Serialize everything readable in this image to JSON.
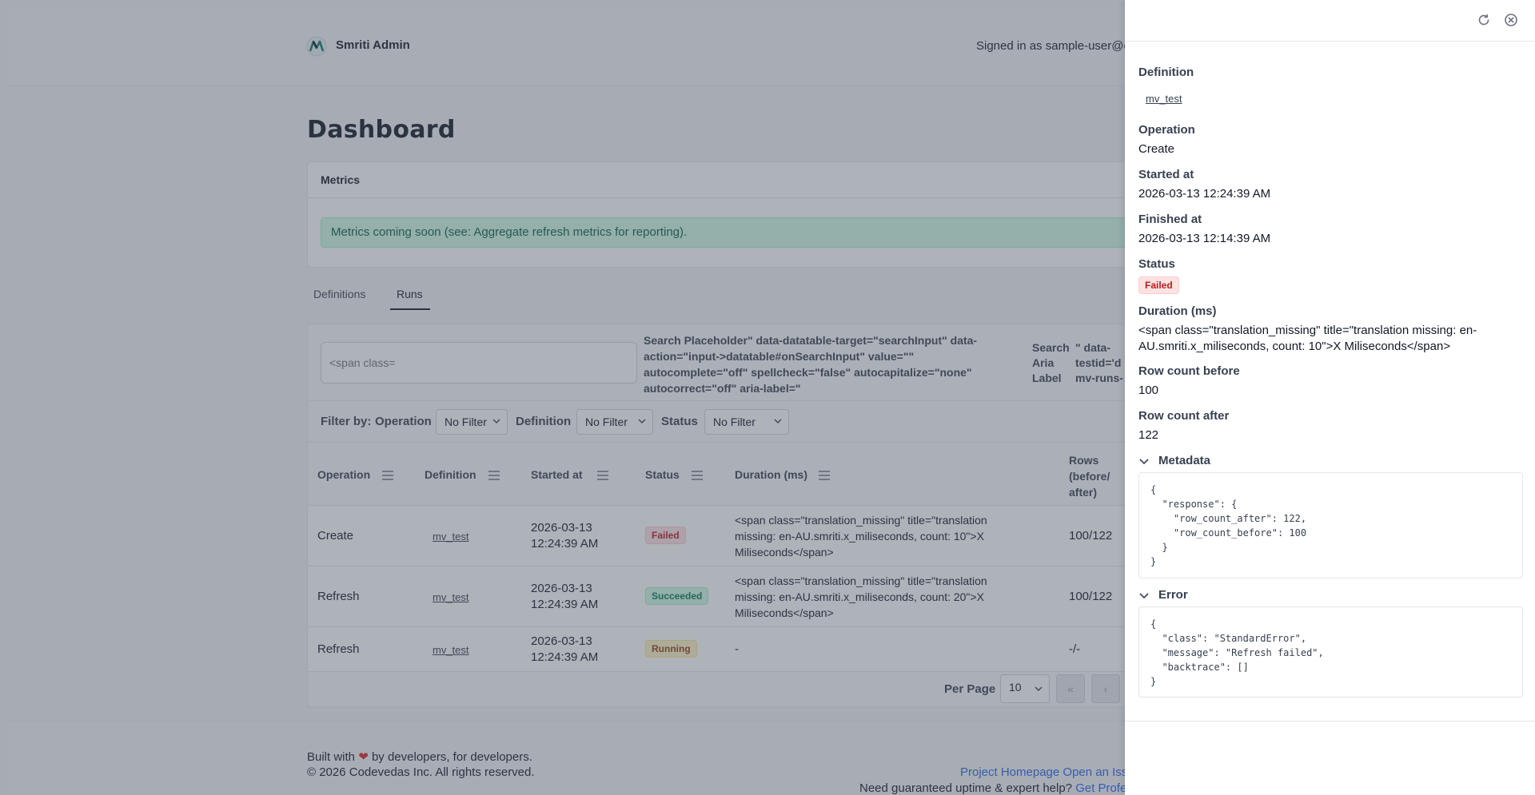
{
  "header": {
    "brand": "Smriti Admin",
    "signed_in": "Signed in as sample-user@e"
  },
  "page_title": "Dashboard",
  "metrics": {
    "title": "Metrics",
    "message": "Metrics coming soon (see: Aggregate refresh metrics for reporting)."
  },
  "tabs": [
    {
      "label": "Definitions",
      "active": false
    },
    {
      "label": "Runs",
      "active": true
    }
  ],
  "search": {
    "placeholder": "<span class=",
    "garbled_text": "Search Placeholder\" data-datatable-target=\"searchInput\" data-action=\"input->datatable#onSearchInput\" value=\"\" autocomplete=\"off\" spellcheck=\"false\" autocapitalize=\"none\" autocorrect=\"off\" aria-label=\"",
    "aria_label_text": "Search Aria Label",
    "testid_text": "\" data-testid='d\nmv-runs-"
  },
  "filters": {
    "label": "Filter by:",
    "operation_label": "Operation",
    "operation_value": "No Filter",
    "definition_label": "Definition",
    "definition_value": "No Filter",
    "status_label": "Status",
    "status_value": "No Filter"
  },
  "table": {
    "headers": {
      "operation": "Operation",
      "definition": "Definition",
      "started_at": "Started at",
      "status": "Status",
      "duration": "Duration (ms)",
      "rows": "Rows (before/ after)"
    },
    "rows": [
      {
        "operation": "Create",
        "definition": "mv_test",
        "started_at": "2026-03-13 12:24:39 AM",
        "status": "Failed",
        "duration": "<span class=\"translation_missing\" title=\"translation missing: en-AU.smriti.x_miliseconds, count: 10\">X Miliseconds</span>",
        "rows": "100/122"
      },
      {
        "operation": "Refresh",
        "definition": "mv_test",
        "started_at": "2026-03-13 12:24:39 AM",
        "status": "Succeeded",
        "duration": "<span class=\"translation_missing\" title=\"translation missing: en-AU.smriti.x_miliseconds, count: 20\">X Miliseconds</span>",
        "rows": "100/122"
      },
      {
        "operation": "Refresh",
        "definition": "mv_test",
        "started_at": "2026-03-13 12:24:39 AM",
        "status": "Running",
        "duration": "-",
        "rows": "-/-"
      }
    ]
  },
  "pagination": {
    "per_page_label": "Per Page",
    "per_page_value": "10",
    "first_icon": "«",
    "prev_icon": "‹"
  },
  "footer": {
    "built_prefix": "Built with",
    "built_suffix": "by developers, for developers.",
    "copyright": "© 2026 Codevedas Inc. All rights reserved.",
    "project_homepage": "Project Homepage",
    "open_issue": "Open an Iss",
    "uptime_text": "Need guaranteed uptime & expert help?",
    "get_pro": "Get Profe"
  },
  "drawer": {
    "definition_label": "Definition",
    "definition_value": "mv_test",
    "operation_label": "Operation",
    "operation_value": "Create",
    "started_label": "Started at",
    "started_value": "2026-03-13 12:24:39 AM",
    "finished_label": "Finished at",
    "finished_value": "2026-03-13 12:14:39 AM",
    "status_label": "Status",
    "status_value": "Failed",
    "duration_label": "Duration (ms)",
    "duration_value": "<span class=\"translation_missing\" title=\"translation missing: en-AU.smriti.x_miliseconds, count: 10\">X Miliseconds</span>",
    "row_before_label": "Row count before",
    "row_before_value": "100",
    "row_after_label": "Row count after",
    "row_after_value": "122",
    "metadata_label": "Metadata",
    "metadata_json": "{\n  \"response\": {\n    \"row_count_after\": 122,\n    \"row_count_before\": 100\n  }\n}",
    "error_label": "Error",
    "error_json": "{\n  \"class\": \"StandardError\",\n  \"message\": \"Refresh failed\",\n  \"backtrace\": []\n}"
  },
  "colors": {
    "failed": "#b91c1c",
    "succeeded": "#047857",
    "running": "#92400e",
    "link": "#2563eb",
    "heart": "#dc2626"
  },
  "icons": {
    "refresh": "refresh-icon",
    "close": "close-circle-icon",
    "heart": "heart-icon"
  }
}
